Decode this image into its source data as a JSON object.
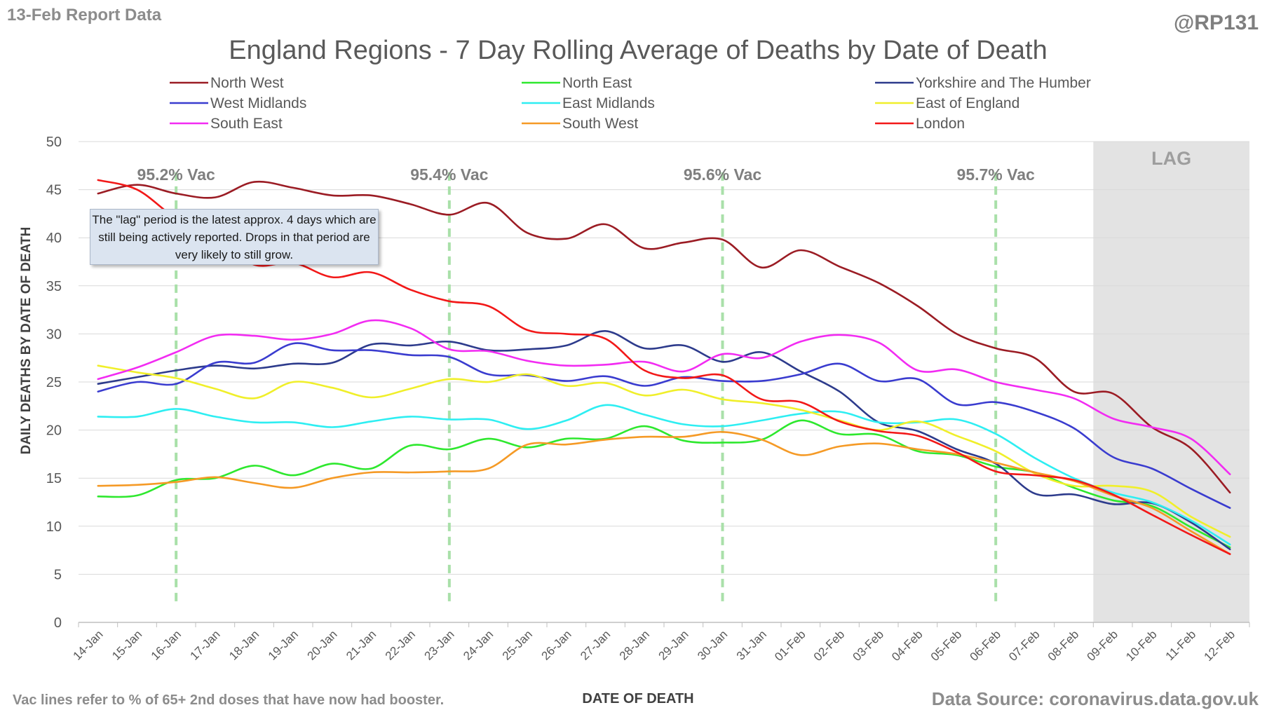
{
  "header": {
    "report_date": "13-Feb Report Data",
    "author": "@RP131"
  },
  "footer": {
    "vac_note": "Vac lines refer to % of 65+ 2nd doses that have now had booster.",
    "data_source": "Data Source: coronavirus.data.gov.uk"
  },
  "annotation": {
    "lag_note": "The \"lag\" period is the latest approx. 4 days which are still being actively reported.  Drops in that period are very likely to still grow."
  },
  "chart_data": {
    "type": "line",
    "title": "England Regions - 7 Day Rolling Average of Deaths by Date of Death",
    "xlabel": "DATE OF DEATH",
    "ylabel": "DAILY DEATHS BY DATE OF DEATH",
    "ylim": [
      0,
      50
    ],
    "yticks": [
      0,
      5,
      10,
      15,
      20,
      25,
      30,
      35,
      40,
      45,
      50
    ],
    "grid": true,
    "legend_position": "top",
    "categories": [
      "14-Jan",
      "15-Jan",
      "16-Jan",
      "17-Jan",
      "18-Jan",
      "19-Jan",
      "20-Jan",
      "21-Jan",
      "22-Jan",
      "23-Jan",
      "24-Jan",
      "25-Jan",
      "26-Jan",
      "27-Jan",
      "28-Jan",
      "29-Jan",
      "30-Jan",
      "31-Jan",
      "01-Feb",
      "02-Feb",
      "03-Feb",
      "04-Feb",
      "05-Feb",
      "06-Feb",
      "07-Feb",
      "08-Feb",
      "09-Feb",
      "10-Feb",
      "11-Feb",
      "12-Feb"
    ],
    "lag_region": {
      "start": "09-Feb",
      "end": "12-Feb",
      "label": "LAG"
    },
    "vac_lines": [
      {
        "at": "16-Jan",
        "label": "95.2% Vac"
      },
      {
        "at": "23-Jan",
        "label": "95.4% Vac"
      },
      {
        "at": "30-Jan",
        "label": "95.6% Vac"
      },
      {
        "at": "06-Feb",
        "label": "95.7% Vac"
      }
    ],
    "series": [
      {
        "name": "North West",
        "color": "#9b1c24",
        "values": [
          44.6,
          45.5,
          44.6,
          44.2,
          45.8,
          45.2,
          44.4,
          44.4,
          43.5,
          42.4,
          43.6,
          40.5,
          39.9,
          41.4,
          38.9,
          39.5,
          39.8,
          36.9,
          38.7,
          37.0,
          35.3,
          32.9,
          30.0,
          28.5,
          27.5,
          24.0,
          23.8,
          20.3,
          18.1,
          13.5
        ]
      },
      {
        "name": "North East",
        "color": "#2ee82e",
        "values": [
          13.1,
          13.2,
          14.8,
          15.0,
          16.3,
          15.3,
          16.5,
          16.0,
          18.4,
          18.0,
          19.1,
          18.2,
          19.1,
          19.1,
          20.4,
          18.9,
          18.7,
          19.0,
          21.0,
          19.6,
          19.5,
          17.8,
          17.4,
          16.2,
          15.6,
          14.0,
          12.7,
          12.1,
          9.9,
          7.8
        ]
      },
      {
        "name": "Yorkshire and The Humber",
        "color": "#2d3b8c",
        "values": [
          24.8,
          25.5,
          26.2,
          26.7,
          26.4,
          26.9,
          27.0,
          28.9,
          28.8,
          29.2,
          28.3,
          28.4,
          28.8,
          30.3,
          28.5,
          28.8,
          27.1,
          28.1,
          26.1,
          24.0,
          20.8,
          19.9,
          18.0,
          16.5,
          13.4,
          13.3,
          12.3,
          12.4,
          10.4,
          7.6
        ]
      },
      {
        "name": "West Midlands",
        "color": "#3a3ccf",
        "values": [
          24.0,
          25.0,
          24.8,
          27.0,
          27.0,
          29.0,
          28.3,
          28.3,
          27.8,
          27.6,
          25.8,
          25.7,
          25.1,
          25.6,
          24.6,
          25.5,
          25.1,
          25.1,
          25.8,
          26.9,
          25.1,
          25.3,
          22.7,
          22.9,
          21.9,
          20.2,
          17.2,
          16.0,
          13.9,
          11.9
        ]
      },
      {
        "name": "East Midlands",
        "color": "#2eeef2",
        "values": [
          21.4,
          21.4,
          22.2,
          21.4,
          20.8,
          20.8,
          20.3,
          20.9,
          21.4,
          21.1,
          21.1,
          20.1,
          21.0,
          22.6,
          21.6,
          20.6,
          20.4,
          21.0,
          21.7,
          21.9,
          20.8,
          20.8,
          21.1,
          19.6,
          17.1,
          15.0,
          13.5,
          12.5,
          10.6,
          8.1
        ]
      },
      {
        "name": "East of England",
        "color": "#f0ef2a",
        "values": [
          26.7,
          26.0,
          25.4,
          24.3,
          23.3,
          25.0,
          24.4,
          23.4,
          24.3,
          25.3,
          25.0,
          25.8,
          24.6,
          24.9,
          23.6,
          24.2,
          23.2,
          22.8,
          22.1,
          21.0,
          20.0,
          20.9,
          19.4,
          17.8,
          15.5,
          14.2,
          14.2,
          13.6,
          11.0,
          8.9
        ]
      },
      {
        "name": "South East",
        "color": "#f22cf2",
        "values": [
          25.3,
          26.5,
          28.1,
          29.8,
          29.8,
          29.4,
          30.0,
          31.4,
          30.6,
          28.4,
          28.2,
          27.2,
          26.7,
          26.8,
          27.1,
          26.1,
          27.9,
          27.5,
          29.2,
          29.9,
          29.1,
          26.2,
          26.3,
          25.0,
          24.2,
          23.3,
          21.2,
          20.3,
          19.1,
          15.4
        ]
      },
      {
        "name": "South West",
        "color": "#f59a26",
        "values": [
          14.2,
          14.3,
          14.6,
          15.1,
          14.5,
          14.0,
          15.0,
          15.6,
          15.6,
          15.7,
          16.0,
          18.5,
          18.5,
          19.0,
          19.3,
          19.3,
          19.8,
          19.0,
          17.4,
          18.3,
          18.6,
          18.0,
          17.5,
          16.6,
          15.6,
          14.7,
          13.2,
          11.9,
          9.5,
          7.1
        ]
      },
      {
        "name": "London",
        "color": "#f21818",
        "values": [
          46.0,
          45.0,
          42.0,
          40.0,
          37.2,
          37.4,
          35.9,
          36.4,
          34.6,
          33.4,
          32.9,
          30.4,
          30.0,
          29.5,
          26.2,
          25.4,
          25.7,
          23.2,
          22.9,
          20.9,
          19.9,
          19.4,
          17.7,
          15.7,
          15.3,
          14.8,
          13.3,
          11.2,
          9.1,
          7.1
        ]
      }
    ]
  }
}
